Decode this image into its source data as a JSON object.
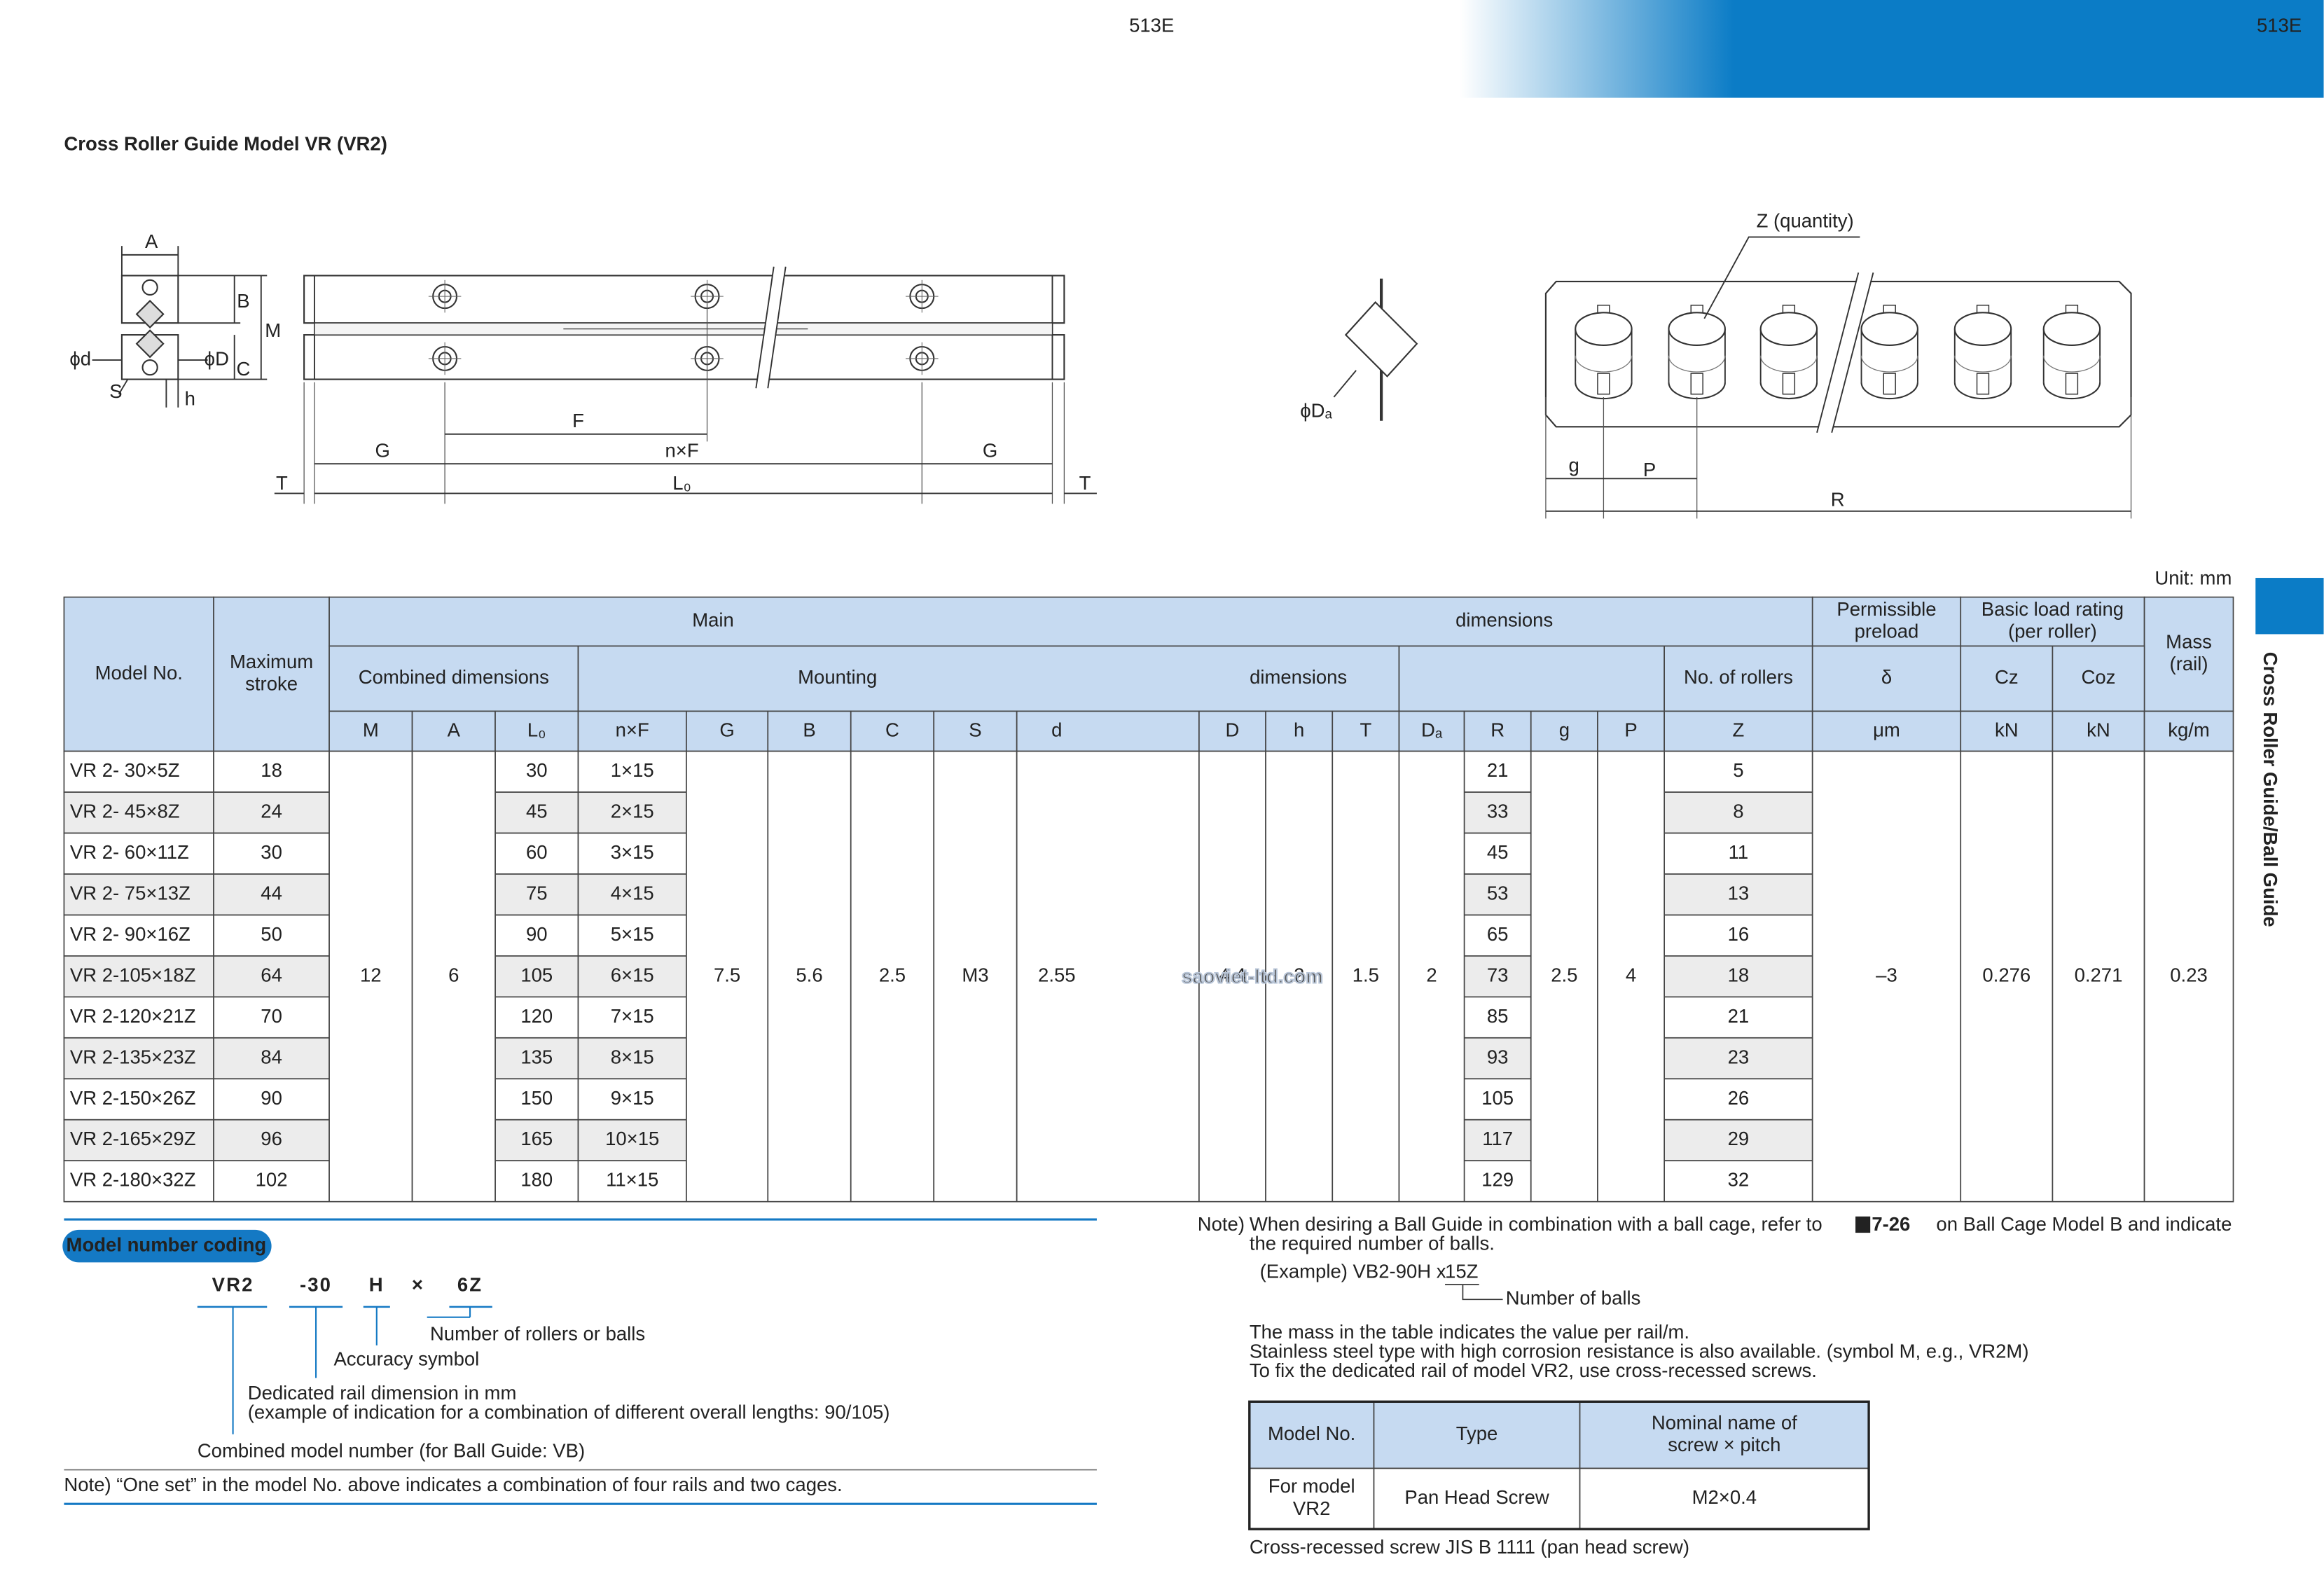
{
  "header": {
    "page": "513E"
  },
  "title": "Cross Roller Guide Model VR (VR2)",
  "side_tab": "Cross Roller Guide/Ball Guide",
  "diagram": {
    "labels": [
      "A",
      "B",
      "M",
      "ϕd",
      "ϕD",
      "C",
      "S",
      "h",
      "F",
      "G",
      "n×F",
      "G",
      "T",
      "L₀",
      "T",
      "ϕDₐ",
      "Z (quantity)",
      "g",
      "P",
      "R"
    ]
  },
  "watermark": "saoviet-ltd.com",
  "unit": "Unit: mm",
  "table": {
    "headers": {
      "model": "Model No.",
      "stroke": [
        "Maximum",
        "stroke"
      ],
      "main": [
        "Main",
        "dimensions"
      ],
      "preload": [
        "Permissible",
        "preload"
      ],
      "load": [
        "Basic load rating",
        "(per roller)"
      ],
      "mass": [
        "Mass",
        "(rail)"
      ],
      "combined": "Combined dimensions",
      "mounting": [
        "Mounting",
        "dimensions"
      ],
      "rollers": "No. of rollers",
      "delta": "δ",
      "cz": "Cz",
      "coz": "Coz",
      "columns": [
        "M",
        "A",
        "L₀",
        "n×F",
        "G",
        "B",
        "C",
        "S",
        "d",
        "D",
        "h",
        "T",
        "Dₐ",
        "R",
        "g",
        "P",
        "Z",
        "μm",
        "kN",
        "kN",
        "kg/m"
      ]
    },
    "rows": [
      [
        "VR 2- 30×5Z",
        "18",
        "30",
        "1×15",
        "21",
        "5"
      ],
      [
        "VR 2- 45×8Z",
        "24",
        "45",
        "2×15",
        "33",
        "8"
      ],
      [
        "VR 2- 60×11Z",
        "30",
        "60",
        "3×15",
        "45",
        "11"
      ],
      [
        "VR 2- 75×13Z",
        "44",
        "75",
        "4×15",
        "53",
        "13"
      ],
      [
        "VR 2- 90×16Z",
        "50",
        "90",
        "5×15",
        "65",
        "16"
      ],
      [
        "VR 2-105×18Z",
        "64",
        "105",
        "6×15",
        "73",
        "18"
      ],
      [
        "VR 2-120×21Z",
        "70",
        "120",
        "7×15",
        "85",
        "21"
      ],
      [
        "VR 2-135×23Z",
        "84",
        "135",
        "8×15",
        "93",
        "23"
      ],
      [
        "VR 2-150×26Z",
        "90",
        "150",
        "9×15",
        "105",
        "26"
      ],
      [
        "VR 2-165×29Z",
        "96",
        "165",
        "10×15",
        "117",
        "29"
      ],
      [
        "VR 2-180×32Z",
        "102",
        "180",
        "11×15",
        "129",
        "32"
      ]
    ],
    "shared": [
      "12",
      "6",
      "7.5",
      "5.6",
      "2.5",
      "M3",
      "2.55",
      "4.4",
      "2",
      "1.5",
      "2",
      "2.5",
      "4",
      "–3",
      "0.276",
      "0.271",
      "0.23"
    ]
  },
  "coding": {
    "label": "Model number coding",
    "parts": [
      "VR2",
      "-30",
      "H",
      "×",
      "6Z"
    ],
    "explanations": [
      "Number of rollers or balls",
      "Accuracy symbol",
      "Dedicated rail dimension in mm",
      "(example of indication for a combination of different overall lengths: 90/105)",
      "Combined model number (for Ball Guide: VB)"
    ],
    "note": "Note) “One set” in the model No. above indicates a combination of four rails and two cages."
  },
  "notes": {
    "label": "Note)",
    "ball_guide": [
      "When desiring a Ball Guide in combination with a ball cage, refer to",
      "7-26",
      "on Ball Cage Model B and indicate",
      "the required number of balls."
    ],
    "example": [
      "(Example) VB2-90H x",
      "15Z",
      "Number of balls"
    ],
    "lines": [
      "The mass in the table indicates the value per rail/m.",
      "Stainless steel type with high corrosion resistance is also available. (symbol M, e.g., VR2M)",
      "To fix the dedicated rail of model VR2, use cross-recessed screws."
    ]
  },
  "screw_table": {
    "headers": [
      "Model No.",
      "Type",
      [
        "Nominal name of",
        "screw × pitch"
      ]
    ],
    "row": [
      [
        "For model",
        "VR2"
      ],
      "Pan Head Screw",
      "M2×0.4"
    ],
    "caption": "Cross-recessed screw JIS B 1111 (pan head screw)"
  }
}
